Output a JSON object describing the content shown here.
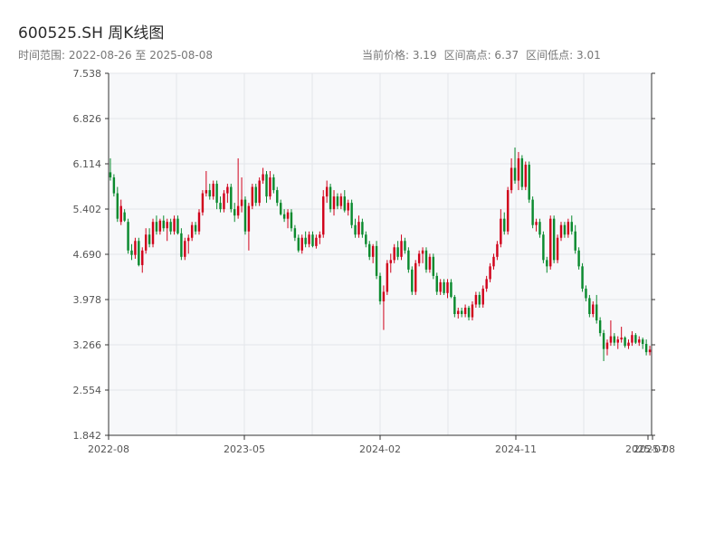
{
  "header": {
    "title": "600525.SH 周K线图",
    "range_label": "时间范围: 2022-08-26 至 2025-08-08",
    "current_price_label": "当前价格: 3.19",
    "high_label": "区间高点: 6.37",
    "low_label": "区间低点: 3.01"
  },
  "colors": {
    "up": "#d0021b",
    "down": "#0a8a2e",
    "plot_bg": "#f7f8fa",
    "grid": "#e3e6ea",
    "axis": "#333333"
  },
  "chart_data": {
    "type": "candlestick",
    "ylim": [
      1.842,
      7.538
    ],
    "y_ticks": [
      "1.842",
      "2.554",
      "3.266",
      "3.978",
      "4.690",
      "5.402",
      "6.114",
      "6.826",
      "7.538"
    ],
    "x_ticks": [
      "2022-08",
      "2023-05",
      "2024-02",
      "2024-11",
      "2025-07",
      "2025-08"
    ],
    "grid": true,
    "legend": "none",
    "candles": [
      {
        "o": 5.98,
        "h": 6.2,
        "l": 5.85,
        "c": 5.9
      },
      {
        "o": 5.9,
        "h": 5.95,
        "l": 5.6,
        "c": 5.65
      },
      {
        "o": 5.65,
        "h": 5.75,
        "l": 5.2,
        "c": 5.25
      },
      {
        "o": 5.2,
        "h": 5.55,
        "l": 5.15,
        "c": 5.45
      },
      {
        "o": 5.35,
        "h": 5.4,
        "l": 5.2,
        "c": 5.22
      },
      {
        "o": 5.2,
        "h": 5.25,
        "l": 4.7,
        "c": 4.75
      },
      {
        "o": 4.75,
        "h": 4.85,
        "l": 4.6,
        "c": 4.68
      },
      {
        "o": 4.68,
        "h": 4.95,
        "l": 4.62,
        "c": 4.9
      },
      {
        "o": 4.9,
        "h": 4.95,
        "l": 4.5,
        "c": 4.52
      },
      {
        "o": 4.52,
        "h": 4.8,
        "l": 4.4,
        "c": 4.75
      },
      {
        "o": 4.75,
        "h": 5.1,
        "l": 4.7,
        "c": 5.0
      },
      {
        "o": 5.0,
        "h": 5.1,
        "l": 4.8,
        "c": 4.85
      },
      {
        "o": 4.85,
        "h": 5.25,
        "l": 4.8,
        "c": 5.2
      },
      {
        "o": 5.2,
        "h": 5.3,
        "l": 5.0,
        "c": 5.05
      },
      {
        "o": 5.05,
        "h": 5.25,
        "l": 5.0,
        "c": 5.22
      },
      {
        "o": 5.22,
        "h": 5.3,
        "l": 5.05,
        "c": 5.1
      },
      {
        "o": 5.1,
        "h": 5.25,
        "l": 4.9,
        "c": 5.2
      },
      {
        "o": 5.2,
        "h": 5.25,
        "l": 5.0,
        "c": 5.05
      },
      {
        "o": 5.05,
        "h": 5.3,
        "l": 5.0,
        "c": 5.25
      },
      {
        "o": 5.25,
        "h": 5.3,
        "l": 5.0,
        "c": 5.02
      },
      {
        "o": 5.02,
        "h": 5.1,
        "l": 4.6,
        "c": 4.65
      },
      {
        "o": 4.65,
        "h": 4.95,
        "l": 4.6,
        "c": 4.9
      },
      {
        "o": 4.9,
        "h": 5.0,
        "l": 4.7,
        "c": 4.95
      },
      {
        "o": 4.95,
        "h": 5.2,
        "l": 4.9,
        "c": 5.15
      },
      {
        "o": 5.15,
        "h": 5.2,
        "l": 5.0,
        "c": 5.05
      },
      {
        "o": 5.05,
        "h": 5.4,
        "l": 5.0,
        "c": 5.35
      },
      {
        "o": 5.35,
        "h": 5.7,
        "l": 5.3,
        "c": 5.65
      },
      {
        "o": 5.65,
        "h": 6.0,
        "l": 5.6,
        "c": 5.7
      },
      {
        "o": 5.7,
        "h": 5.8,
        "l": 5.55,
        "c": 5.6
      },
      {
        "o": 5.6,
        "h": 5.85,
        "l": 5.55,
        "c": 5.8
      },
      {
        "o": 5.8,
        "h": 5.85,
        "l": 5.4,
        "c": 5.5
      },
      {
        "o": 5.5,
        "h": 5.6,
        "l": 5.35,
        "c": 5.4
      },
      {
        "o": 5.4,
        "h": 5.7,
        "l": 5.35,
        "c": 5.65
      },
      {
        "o": 5.65,
        "h": 5.8,
        "l": 5.5,
        "c": 5.75
      },
      {
        "o": 5.75,
        "h": 5.8,
        "l": 5.35,
        "c": 5.4
      },
      {
        "o": 5.4,
        "h": 5.5,
        "l": 5.2,
        "c": 5.3
      },
      {
        "o": 5.3,
        "h": 6.2,
        "l": 5.25,
        "c": 5.45
      },
      {
        "o": 5.45,
        "h": 5.9,
        "l": 5.35,
        "c": 5.55
      },
      {
        "o": 5.55,
        "h": 5.6,
        "l": 5.0,
        "c": 5.05
      },
      {
        "o": 5.05,
        "h": 5.5,
        "l": 4.75,
        "c": 5.45
      },
      {
        "o": 5.45,
        "h": 5.8,
        "l": 5.4,
        "c": 5.75
      },
      {
        "o": 5.75,
        "h": 5.8,
        "l": 5.45,
        "c": 5.5
      },
      {
        "o": 5.5,
        "h": 5.9,
        "l": 5.45,
        "c": 5.85
      },
      {
        "o": 5.85,
        "h": 6.05,
        "l": 5.8,
        "c": 5.95
      },
      {
        "o": 5.95,
        "h": 6.0,
        "l": 5.5,
        "c": 5.6
      },
      {
        "o": 5.6,
        "h": 6.0,
        "l": 5.55,
        "c": 5.9
      },
      {
        "o": 5.9,
        "h": 5.95,
        "l": 5.65,
        "c": 5.7
      },
      {
        "o": 5.7,
        "h": 5.75,
        "l": 5.45,
        "c": 5.5
      },
      {
        "o": 5.5,
        "h": 5.55,
        "l": 5.3,
        "c": 5.32
      },
      {
        "o": 5.32,
        "h": 5.4,
        "l": 5.2,
        "c": 5.25
      },
      {
        "o": 5.25,
        "h": 5.4,
        "l": 5.1,
        "c": 5.35
      },
      {
        "o": 5.35,
        "h": 5.4,
        "l": 5.05,
        "c": 5.1
      },
      {
        "o": 5.1,
        "h": 5.15,
        "l": 4.9,
        "c": 4.95
      },
      {
        "o": 4.95,
        "h": 5.0,
        "l": 4.72,
        "c": 4.75
      },
      {
        "o": 4.75,
        "h": 5.0,
        "l": 4.7,
        "c": 4.95
      },
      {
        "o": 4.95,
        "h": 5.05,
        "l": 4.8,
        "c": 4.85
      },
      {
        "o": 4.85,
        "h": 5.05,
        "l": 4.8,
        "c": 5.0
      },
      {
        "o": 5.0,
        "h": 5.05,
        "l": 4.8,
        "c": 4.82
      },
      {
        "o": 4.82,
        "h": 5.0,
        "l": 4.78,
        "c": 4.95
      },
      {
        "o": 4.95,
        "h": 5.05,
        "l": 4.85,
        "c": 5.0
      },
      {
        "o": 5.0,
        "h": 5.7,
        "l": 4.95,
        "c": 5.6
      },
      {
        "o": 5.6,
        "h": 5.85,
        "l": 5.5,
        "c": 5.75
      },
      {
        "o": 5.75,
        "h": 5.8,
        "l": 5.35,
        "c": 5.4
      },
      {
        "o": 5.4,
        "h": 5.7,
        "l": 5.3,
        "c": 5.6
      },
      {
        "o": 5.6,
        "h": 5.65,
        "l": 5.4,
        "c": 5.45
      },
      {
        "o": 5.45,
        "h": 5.65,
        "l": 5.4,
        "c": 5.6
      },
      {
        "o": 5.6,
        "h": 5.7,
        "l": 5.35,
        "c": 5.38
      },
      {
        "o": 5.38,
        "h": 5.55,
        "l": 5.3,
        "c": 5.5
      },
      {
        "o": 5.5,
        "h": 5.55,
        "l": 5.1,
        "c": 5.15
      },
      {
        "o": 5.15,
        "h": 5.25,
        "l": 4.95,
        "c": 5.0
      },
      {
        "o": 5.0,
        "h": 5.3,
        "l": 4.95,
        "c": 5.2
      },
      {
        "o": 5.2,
        "h": 5.25,
        "l": 4.95,
        "c": 5.0
      },
      {
        "o": 5.0,
        "h": 5.05,
        "l": 4.8,
        "c": 4.85
      },
      {
        "o": 4.85,
        "h": 4.9,
        "l": 4.6,
        "c": 4.65
      },
      {
        "o": 4.65,
        "h": 4.85,
        "l": 4.55,
        "c": 4.82
      },
      {
        "o": 4.82,
        "h": 4.9,
        "l": 4.3,
        "c": 4.35
      },
      {
        "o": 4.35,
        "h": 4.4,
        "l": 3.9,
        "c": 3.95
      },
      {
        "o": 3.95,
        "h": 4.2,
        "l": 3.5,
        "c": 4.1
      },
      {
        "o": 4.1,
        "h": 4.6,
        "l": 4.05,
        "c": 4.55
      },
      {
        "o": 4.55,
        "h": 4.7,
        "l": 4.4,
        "c": 4.6
      },
      {
        "o": 4.6,
        "h": 4.85,
        "l": 4.55,
        "c": 4.8
      },
      {
        "o": 4.8,
        "h": 4.9,
        "l": 4.6,
        "c": 4.65
      },
      {
        "o": 4.65,
        "h": 5.0,
        "l": 4.6,
        "c": 4.9
      },
      {
        "o": 4.9,
        "h": 4.95,
        "l": 4.7,
        "c": 4.75
      },
      {
        "o": 4.75,
        "h": 4.8,
        "l": 4.4,
        "c": 4.45
      },
      {
        "o": 4.45,
        "h": 4.5,
        "l": 4.05,
        "c": 4.1
      },
      {
        "o": 4.1,
        "h": 4.6,
        "l": 4.05,
        "c": 4.55
      },
      {
        "o": 4.55,
        "h": 4.75,
        "l": 4.5,
        "c": 4.7
      },
      {
        "o": 4.7,
        "h": 4.8,
        "l": 4.55,
        "c": 4.75
      },
      {
        "o": 4.75,
        "h": 4.8,
        "l": 4.4,
        "c": 4.45
      },
      {
        "o": 4.45,
        "h": 4.7,
        "l": 4.4,
        "c": 4.65
      },
      {
        "o": 4.65,
        "h": 4.7,
        "l": 4.3,
        "c": 4.35
      },
      {
        "o": 4.35,
        "h": 4.4,
        "l": 4.05,
        "c": 4.1
      },
      {
        "o": 4.1,
        "h": 4.3,
        "l": 4.05,
        "c": 4.25
      },
      {
        "o": 4.25,
        "h": 4.3,
        "l": 4.05,
        "c": 4.08
      },
      {
        "o": 4.08,
        "h": 4.3,
        "l": 4.0,
        "c": 4.25
      },
      {
        "o": 4.25,
        "h": 4.3,
        "l": 4.0,
        "c": 4.02
      },
      {
        "o": 4.02,
        "h": 4.05,
        "l": 3.7,
        "c": 3.75
      },
      {
        "o": 3.75,
        "h": 3.85,
        "l": 3.68,
        "c": 3.8
      },
      {
        "o": 3.8,
        "h": 3.85,
        "l": 3.7,
        "c": 3.75
      },
      {
        "o": 3.75,
        "h": 3.9,
        "l": 3.7,
        "c": 3.85
      },
      {
        "o": 3.85,
        "h": 3.88,
        "l": 3.65,
        "c": 3.7
      },
      {
        "o": 3.7,
        "h": 3.95,
        "l": 3.65,
        "c": 3.9
      },
      {
        "o": 3.9,
        "h": 4.1,
        "l": 3.85,
        "c": 4.05
      },
      {
        "o": 4.05,
        "h": 4.1,
        "l": 3.85,
        "c": 3.9
      },
      {
        "o": 3.9,
        "h": 4.2,
        "l": 3.85,
        "c": 4.15
      },
      {
        "o": 4.15,
        "h": 4.35,
        "l": 4.1,
        "c": 4.3
      },
      {
        "o": 4.3,
        "h": 4.55,
        "l": 4.25,
        "c": 4.5
      },
      {
        "o": 4.5,
        "h": 4.7,
        "l": 4.45,
        "c": 4.65
      },
      {
        "o": 4.65,
        "h": 4.9,
        "l": 4.6,
        "c": 4.85
      },
      {
        "o": 4.85,
        "h": 5.4,
        "l": 4.8,
        "c": 5.25
      },
      {
        "o": 5.25,
        "h": 5.35,
        "l": 5.0,
        "c": 5.05
      },
      {
        "o": 5.05,
        "h": 5.75,
        "l": 5.0,
        "c": 5.7
      },
      {
        "o": 5.7,
        "h": 6.2,
        "l": 5.65,
        "c": 6.05
      },
      {
        "o": 6.05,
        "h": 6.37,
        "l": 5.8,
        "c": 5.85
      },
      {
        "o": 5.85,
        "h": 6.3,
        "l": 5.7,
        "c": 6.2
      },
      {
        "o": 6.2,
        "h": 6.25,
        "l": 5.7,
        "c": 5.75
      },
      {
        "o": 5.75,
        "h": 6.15,
        "l": 5.7,
        "c": 6.1
      },
      {
        "o": 6.1,
        "h": 6.15,
        "l": 5.5,
        "c": 5.55
      },
      {
        "o": 5.55,
        "h": 5.6,
        "l": 5.1,
        "c": 5.15
      },
      {
        "o": 5.15,
        "h": 5.25,
        "l": 5.05,
        "c": 5.2
      },
      {
        "o": 5.2,
        "h": 5.25,
        "l": 4.95,
        "c": 5.0
      },
      {
        "o": 5.0,
        "h": 5.05,
        "l": 4.55,
        "c": 4.6
      },
      {
        "o": 4.6,
        "h": 4.65,
        "l": 4.4,
        "c": 4.5
      },
      {
        "o": 4.5,
        "h": 5.3,
        "l": 4.45,
        "c": 5.25
      },
      {
        "o": 5.25,
        "h": 5.3,
        "l": 4.55,
        "c": 4.6
      },
      {
        "o": 4.6,
        "h": 5.0,
        "l": 4.55,
        "c": 4.95
      },
      {
        "o": 4.95,
        "h": 5.2,
        "l": 4.9,
        "c": 5.15
      },
      {
        "o": 5.15,
        "h": 5.2,
        "l": 4.95,
        "c": 5.0
      },
      {
        "o": 5.0,
        "h": 5.25,
        "l": 4.95,
        "c": 5.2
      },
      {
        "o": 5.2,
        "h": 5.3,
        "l": 5.0,
        "c": 5.05
      },
      {
        "o": 5.05,
        "h": 5.15,
        "l": 4.7,
        "c": 4.75
      },
      {
        "o": 4.75,
        "h": 4.8,
        "l": 4.45,
        "c": 4.5
      },
      {
        "o": 4.5,
        "h": 4.55,
        "l": 4.1,
        "c": 4.15
      },
      {
        "o": 4.15,
        "h": 4.2,
        "l": 3.95,
        "c": 4.0
      },
      {
        "o": 4.0,
        "h": 4.05,
        "l": 3.7,
        "c": 3.75
      },
      {
        "o": 3.75,
        "h": 3.95,
        "l": 3.7,
        "c": 3.9
      },
      {
        "o": 3.9,
        "h": 4.05,
        "l": 3.6,
        "c": 3.65
      },
      {
        "o": 3.65,
        "h": 3.7,
        "l": 3.4,
        "c": 3.45
      },
      {
        "o": 3.45,
        "h": 3.5,
        "l": 3.01,
        "c": 3.2
      },
      {
        "o": 3.2,
        "h": 3.35,
        "l": 3.1,
        "c": 3.3
      },
      {
        "o": 3.3,
        "h": 3.65,
        "l": 3.25,
        "c": 3.4
      },
      {
        "o": 3.4,
        "h": 3.45,
        "l": 3.25,
        "c": 3.3
      },
      {
        "o": 3.3,
        "h": 3.4,
        "l": 3.2,
        "c": 3.35
      },
      {
        "o": 3.35,
        "h": 3.55,
        "l": 3.3,
        "c": 3.38
      },
      {
        "o": 3.38,
        "h": 3.4,
        "l": 3.22,
        "c": 3.25
      },
      {
        "o": 3.25,
        "h": 3.35,
        "l": 3.2,
        "c": 3.3
      },
      {
        "o": 3.3,
        "h": 3.48,
        "l": 3.25,
        "c": 3.42
      },
      {
        "o": 3.42,
        "h": 3.45,
        "l": 3.28,
        "c": 3.3
      },
      {
        "o": 3.3,
        "h": 3.4,
        "l": 3.25,
        "c": 3.35
      },
      {
        "o": 3.35,
        "h": 3.38,
        "l": 3.2,
        "c": 3.28
      },
      {
        "o": 3.28,
        "h": 3.35,
        "l": 3.1,
        "c": 3.15
      },
      {
        "o": 3.15,
        "h": 3.25,
        "l": 3.1,
        "c": 3.19
      }
    ]
  }
}
